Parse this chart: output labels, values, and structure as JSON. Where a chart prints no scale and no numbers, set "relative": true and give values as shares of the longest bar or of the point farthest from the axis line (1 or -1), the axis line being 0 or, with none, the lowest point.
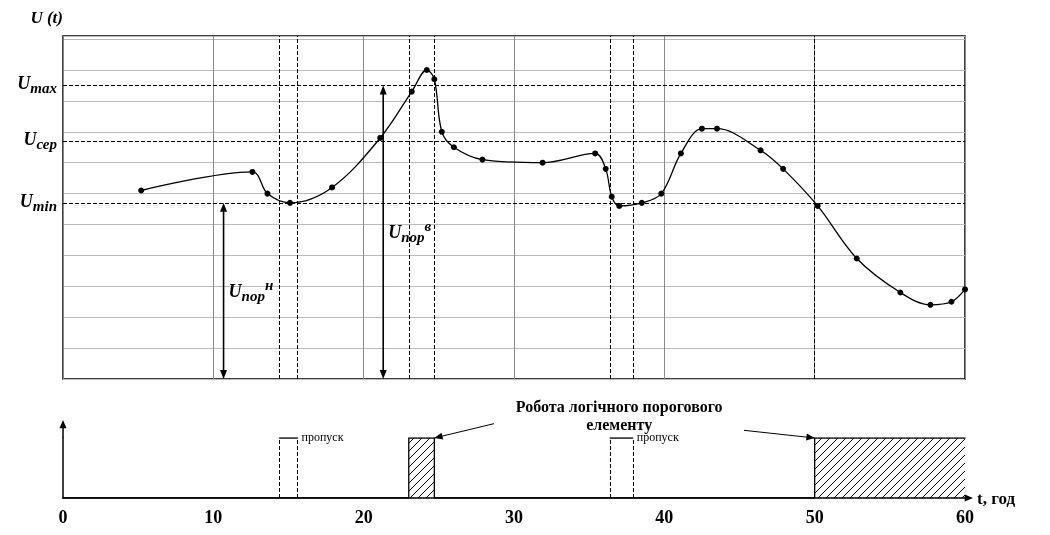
{
  "chart_data": [
    {
      "type": "line",
      "relative": true,
      "ylabel": "U (t)",
      "xlim": [
        0,
        60
      ],
      "xticks": [
        0,
        10,
        20,
        30,
        40,
        50,
        60
      ],
      "tick_labels": false,
      "grid": true,
      "marker": "circle",
      "line_style": "solid",
      "x": [
        5.2,
        12.6,
        13.6,
        15.1,
        17.9,
        21.1,
        23.2,
        24.2,
        24.7,
        25.2,
        26.0,
        27.9,
        31.9,
        35.4,
        36.1,
        36.5,
        37.0,
        38.5,
        39.8,
        41.1,
        42.5,
        43.5,
        46.4,
        47.9,
        50.2,
        52.8,
        55.7,
        57.7,
        59.1,
        60
      ],
      "series": [
        {
          "color": "#000000",
          "values": [
            0.61,
            0.67,
            0.6,
            0.57,
            0.62,
            0.78,
            0.93,
            1,
            0.97,
            0.8,
            0.75,
            0.71,
            0.7,
            0.73,
            0.68,
            0.59,
            0.56,
            0.57,
            0.6,
            0.73,
            0.81,
            0.81,
            0.74,
            0.68,
            0.56,
            0.39,
            0.28,
            0.24,
            0.25,
            0.29
          ]
        }
      ],
      "ref_lines": [
        {
          "axis": "y",
          "value": 0.95,
          "label": "U$_{max}$",
          "line_style": "dashed"
        },
        {
          "axis": "y",
          "value": 0.77,
          "label": "U$_{сер}$",
          "line_style": "dashed"
        },
        {
          "axis": "y",
          "value": 0.57,
          "label": "U$_{min}$",
          "line_style": "dashed"
        },
        {
          "axis": "x",
          "value": 14.4,
          "label": null,
          "line_style": "dashed"
        },
        {
          "axis": "x",
          "value": 15.6,
          "label": null,
          "line_style": "dashed"
        },
        {
          "axis": "x",
          "value": 23.0,
          "label": null,
          "line_style": "dashed"
        },
        {
          "axis": "x",
          "value": 24.7,
          "label": null,
          "line_style": "dashed"
        },
        {
          "axis": "x",
          "value": 36.4,
          "label": null,
          "line_style": "dashed"
        },
        {
          "axis": "x",
          "value": 37.9,
          "label": null,
          "line_style": "dashed"
        },
        {
          "axis": "x",
          "value": 50.0,
          "label": null,
          "line_style": "dashed"
        }
      ],
      "annotations": [
        "U$_{пор}$$^{н}$",
        "U$_{пор}$$^{в}$"
      ]
    },
    {
      "type": "area",
      "relative": true,
      "xlabel": "t, год",
      "xlim": [
        0,
        60
      ],
      "xticks": [
        0,
        10,
        20,
        30,
        40,
        50,
        60
      ],
      "tick_labels": "x",
      "grid": false,
      "series": [
        {
          "color": "#000000",
          "x": [
            0,
            23.0,
            23.0,
            24.7,
            24.7,
            50.0,
            50.0,
            60
          ],
          "values": [
            0,
            0,
            1,
            1,
            0,
            0,
            1,
            1
          ]
        },
        {
          "type": "line",
          "color": "#000000",
          "x": [
            14.4,
            15.6,
            26,
            36.4,
            37.9
          ],
          "values": [
            1,
            1,
            null,
            1,
            1
          ]
        }
      ],
      "ref_lines": [
        {
          "axis": "x",
          "value": 14.4,
          "label": null,
          "line_style": "dashed"
        },
        {
          "axis": "x",
          "value": 15.6,
          "label": null,
          "line_style": "dashed"
        },
        {
          "axis": "x",
          "value": 36.4,
          "label": null,
          "line_style": "dashed"
        },
        {
          "axis": "x",
          "value": 37.9,
          "label": null,
          "line_style": "dashed"
        }
      ],
      "annotations": [
        {
          "text": "пропуск",
          "x": 15.6,
          "y": 1
        },
        {
          "text": "пропуск",
          "x": 37.9,
          "y": 1
        },
        "Робота логічного порогового елементу"
      ]
    }
  ]
}
